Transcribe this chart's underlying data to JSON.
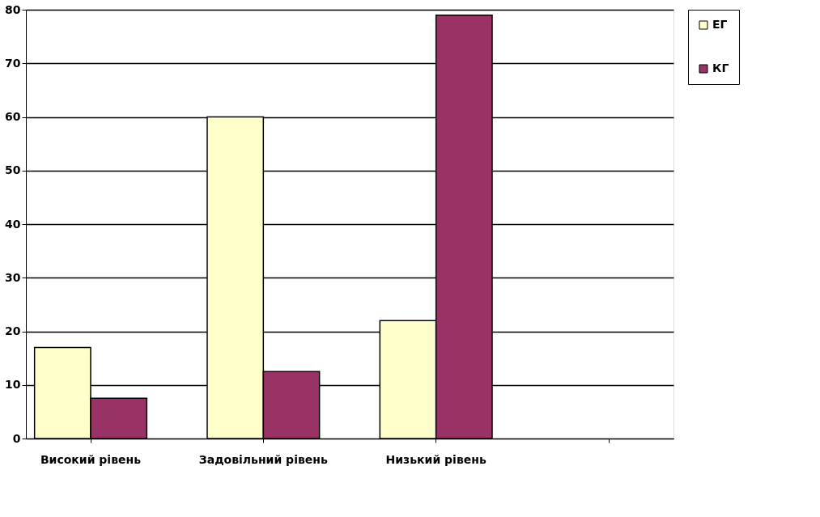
{
  "chart_data": {
    "type": "bar",
    "categories": [
      "Високий рівень",
      "Задовільний рівень",
      "Низький рівень",
      null
    ],
    "series": [
      {
        "name": "ЕГ",
        "color": "#ffffcc",
        "values": [
          17,
          60,
          22,
          null
        ]
      },
      {
        "name": "КГ",
        "color": "#993366",
        "values": [
          7.5,
          12.5,
          79,
          null
        ]
      }
    ],
    "ylim": [
      0,
      80
    ],
    "yticks": [
      0,
      10,
      20,
      30,
      40,
      50,
      60,
      70,
      80
    ],
    "grid": "y",
    "legend": "right"
  }
}
